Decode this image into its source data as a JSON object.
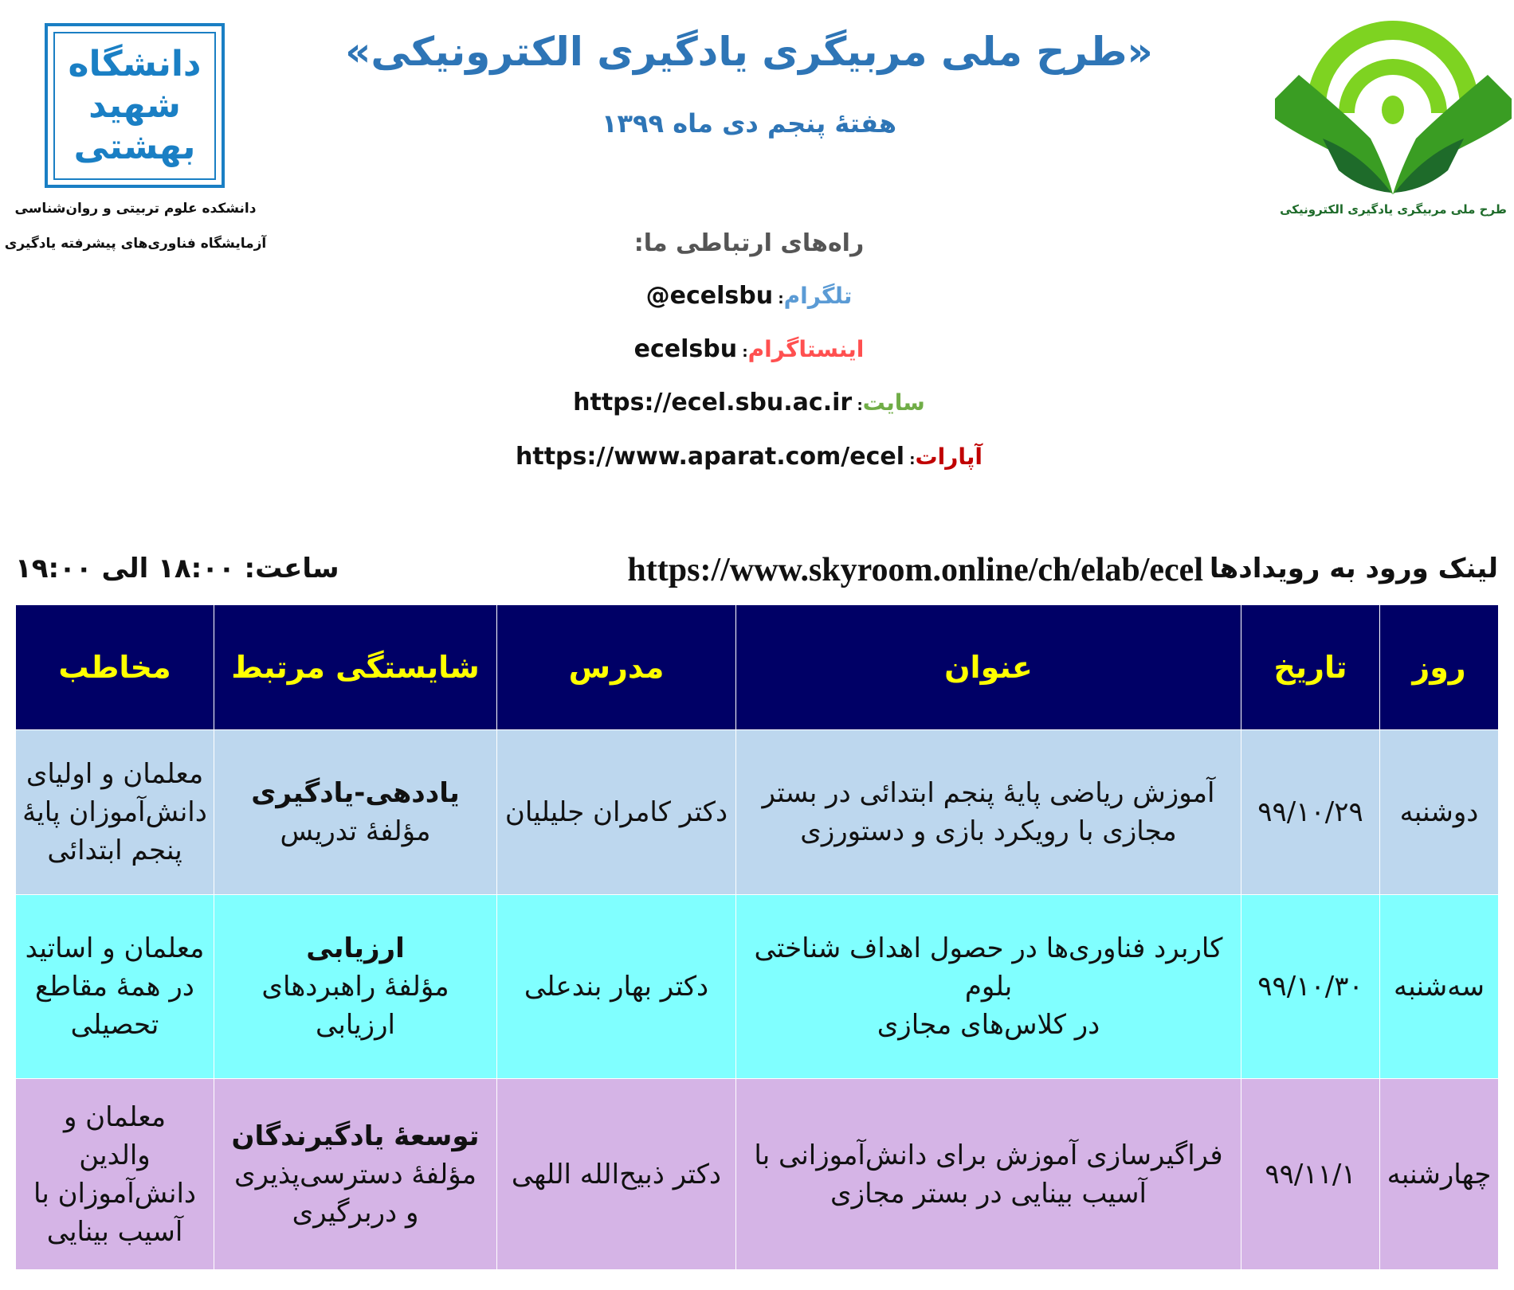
{
  "left_logo": {
    "lettering": "دانشگاه شهید بهشتی",
    "color": "#1a7fc4"
  },
  "left_captions": [
    "دانشکده علوم تربیتی و روان‌شناسی",
    "آزمایشگاه فناوری‌های پیشرفته یادگیری"
  ],
  "right_logo": {
    "caption": "طرح ملی مربیگری یادگیری الکترونیکی",
    "colors": [
      "#7ed321",
      "#3a9d23",
      "#1e6b2a"
    ]
  },
  "header": {
    "title": "«طرح ملی مربیگری یادگیری الکترونیکی»",
    "subtitle": "هفتهٔ پنجم دی ماه ۱۳۹۹"
  },
  "contacts": {
    "heading": "راه‌های ارتباطی ما:",
    "items": [
      {
        "label": "تلگرام",
        "value": "@ecelsbu",
        "color": "#5b9bd5"
      },
      {
        "label": "اینستاگرام",
        "value": "ecelsbu",
        "color": "#ff5050"
      },
      {
        "label": "سایت",
        "value": "https://ecel.sbu.ac.ir",
        "color": "#70ad47"
      },
      {
        "label": "آپارات",
        "value": "https://www.aparat.com/ecel",
        "color": "#c00000"
      }
    ]
  },
  "event_link": {
    "label": "لینک ورود به رویدادها",
    "url": "https://www.skyroom.online/ch/elab/ecel",
    "time": "ساعت: ۱۸:۰۰ الی ۱۹:۰۰"
  },
  "table": {
    "headers": [
      "روز",
      "تاریخ",
      "عنوان",
      "مدرس",
      "شایستگی مرتبط",
      "مخاطب"
    ],
    "rows": [
      {
        "day": "دوشنبه",
        "date": "۹۹/۱۰/۲۹",
        "title": [
          "آموزش ریاضی پایهٔ پنجم ابتدائی در بستر",
          "مجازی با رویکرد بازی و دستورزی"
        ],
        "teacher": "دکتر کامران جلیلیان",
        "competency": "یاددهی-یادگیری",
        "component": [
          "مؤلفهٔ تدریس"
        ],
        "audience": [
          "معلمان و اولیای",
          "دانش‌آموزان پایهٔ",
          "پنجم ابتدائی"
        ],
        "color": "#bdd7ee"
      },
      {
        "day": "سه‌شنبه",
        "date": "۹۹/۱۰/۳۰",
        "title": [
          "کاربرد فناوری‌ها در حصول اهداف شناختی بلوم",
          "در کلاس‌های مجازی"
        ],
        "teacher": "دکتر بهار بندعلی",
        "competency": "ارزیابی",
        "component": [
          "مؤلفهٔ راهبردهای ارزیابی"
        ],
        "audience": [
          "معلمان و اساتید",
          "در همهٔ مقاطع",
          "تحصیلی"
        ],
        "color": "#80ffff"
      },
      {
        "day": "چهارشنبه",
        "date": "۹۹/۱۱/۱",
        "title": [
          "فراگیرسازی آموزش برای دانش‌آموزانی با",
          "آسیب بینایی در بستر مجازی"
        ],
        "teacher": "دکتر ذبیح‌الله اللهی",
        "competency": "توسعهٔ یادگیرندگان",
        "component": [
          "مؤلفهٔ دسترسی‌پذیری",
          "و دربرگیری"
        ],
        "audience": [
          "معلمان و",
          "والدین",
          "دانش‌آموزان با",
          "آسیب بینایی"
        ],
        "color": "#d5b4e6"
      }
    ]
  }
}
